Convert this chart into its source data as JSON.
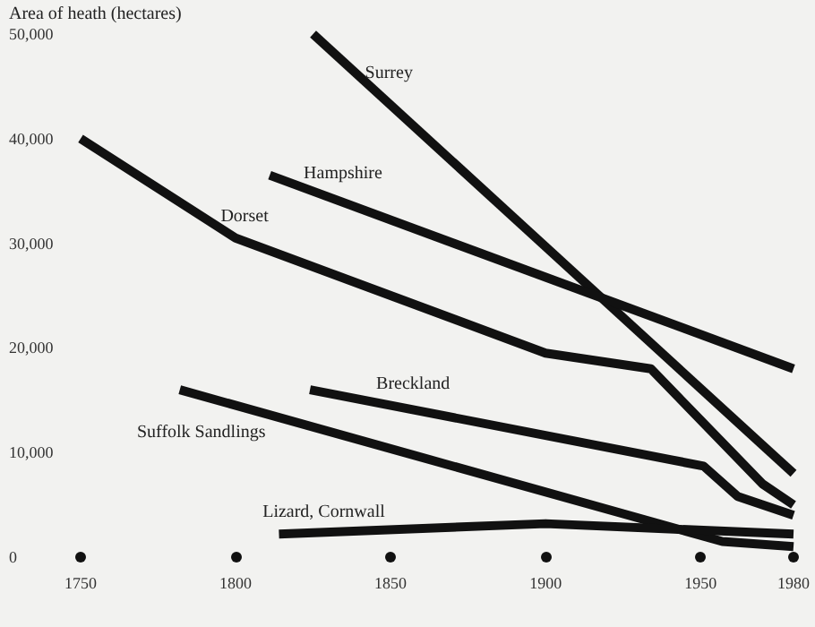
{
  "chart_data": {
    "type": "line",
    "ylabel": "Area of heath (hectares)",
    "xlim": [
      1750,
      1980
    ],
    "xticks": [
      1750,
      1800,
      1850,
      1900,
      1950,
      1980
    ],
    "ylim": [
      0,
      50000
    ],
    "yticks": [
      {
        "value": 0,
        "label": "0"
      },
      {
        "value": 10000,
        "label": "10,000"
      },
      {
        "value": 20000,
        "label": "20,000"
      },
      {
        "value": 30000,
        "label": "30,000"
      },
      {
        "value": 40000,
        "label": "40,000"
      },
      {
        "value": 50000,
        "label": "50,000"
      }
    ],
    "grid": false,
    "legend": false,
    "marker": "none",
    "line_style": "solid",
    "series": [
      {
        "name": "Surrey",
        "color": "#111111",
        "x": [
          1825,
          1980
        ],
        "values": [
          50000,
          8000
        ]
      },
      {
        "name": "Hampshire",
        "color": "#111111",
        "x": [
          1811,
          1980
        ],
        "values": [
          36500,
          18000
        ]
      },
      {
        "name": "Dorset",
        "color": "#111111",
        "x": [
          1750,
          1800,
          1900,
          1934,
          1970,
          1980
        ],
        "values": [
          40000,
          30500,
          19500,
          18000,
          7000,
          5000
        ]
      },
      {
        "name": "Breckland",
        "color": "#111111",
        "x": [
          1824,
          1951,
          1962,
          1980
        ],
        "values": [
          16000,
          8700,
          5800,
          4000
        ]
      },
      {
        "name": "Suffolk Sandlings",
        "color": "#111111",
        "x": [
          1782,
          1957,
          1980
        ],
        "values": [
          16000,
          1500,
          1000
        ]
      },
      {
        "name": "Lizard, Cornwall",
        "color": "#111111",
        "x": [
          1814,
          1900,
          1980
        ],
        "values": [
          2200,
          3200,
          2200
        ]
      }
    ]
  }
}
